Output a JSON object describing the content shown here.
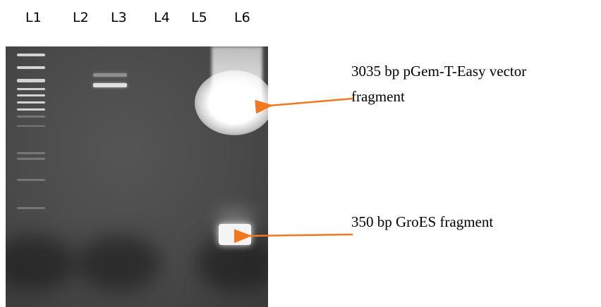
{
  "lanes": [
    "L1",
    "L2",
    "L3",
    "L4",
    "L5",
    "L6"
  ],
  "annotations": {
    "vector_line1": "3035 bp pGem-T-Easy vector",
    "vector_line2": "fragment",
    "groes": "350 bp GroES fragment"
  },
  "colors": {
    "arrow": "#f07820",
    "gel_background": "#4a4a4a",
    "band": "#f0f0f0"
  }
}
